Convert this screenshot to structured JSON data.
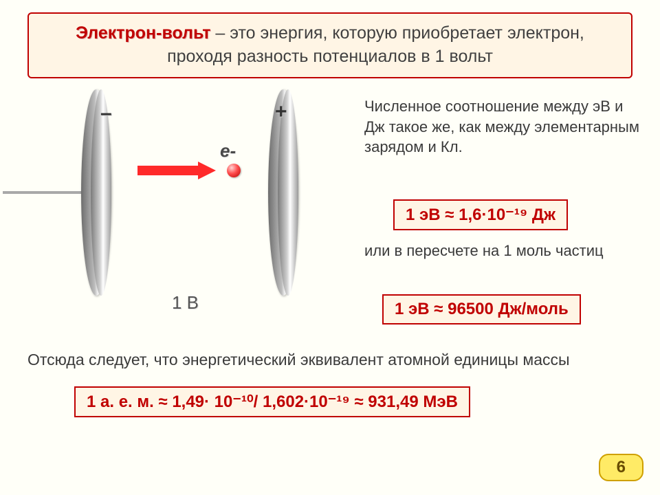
{
  "definition_box": {
    "term": "Электрон-вольт",
    "rest": " – это энергия, которую приобретает электрон, проходя разность потенциалов в 1 вольт"
  },
  "diagram": {
    "minus_sign": "–",
    "plus_sign": "+",
    "electron_label": "e-",
    "voltage_label": "1 В",
    "plate_gradient_dark": "#6d6d6d",
    "plate_gradient_light": "#f2f2f2",
    "arrow_color": "#ff2a2a",
    "electron_color": "#ff4d4d"
  },
  "right": {
    "para1": "Численное соотношение между эВ и Дж такое же, как между элементарным зарядом и Кл.",
    "formula1": "1 эВ ≈ 1,6·10⁻¹⁹ Дж",
    "para2": "или в пересчете на 1 моль частиц",
    "formula2": "1 эВ ≈ 96500 Дж/моль"
  },
  "bottom": {
    "para": "Отсюда следует, что энергетический эквивалент атомной единицы массы",
    "formula3": "1 а. е. м. ≈  1,49· 10⁻¹⁰/ 1,602·10⁻¹⁹ ≈ 931,49 МэВ"
  },
  "colors": {
    "accent_red": "#c00000",
    "box_fill": "#fff5e5",
    "page_bg": "#fffff8",
    "pagenum_fill": "#ffeb66",
    "pagenum_border": "#cfa000"
  },
  "page_number": "6"
}
